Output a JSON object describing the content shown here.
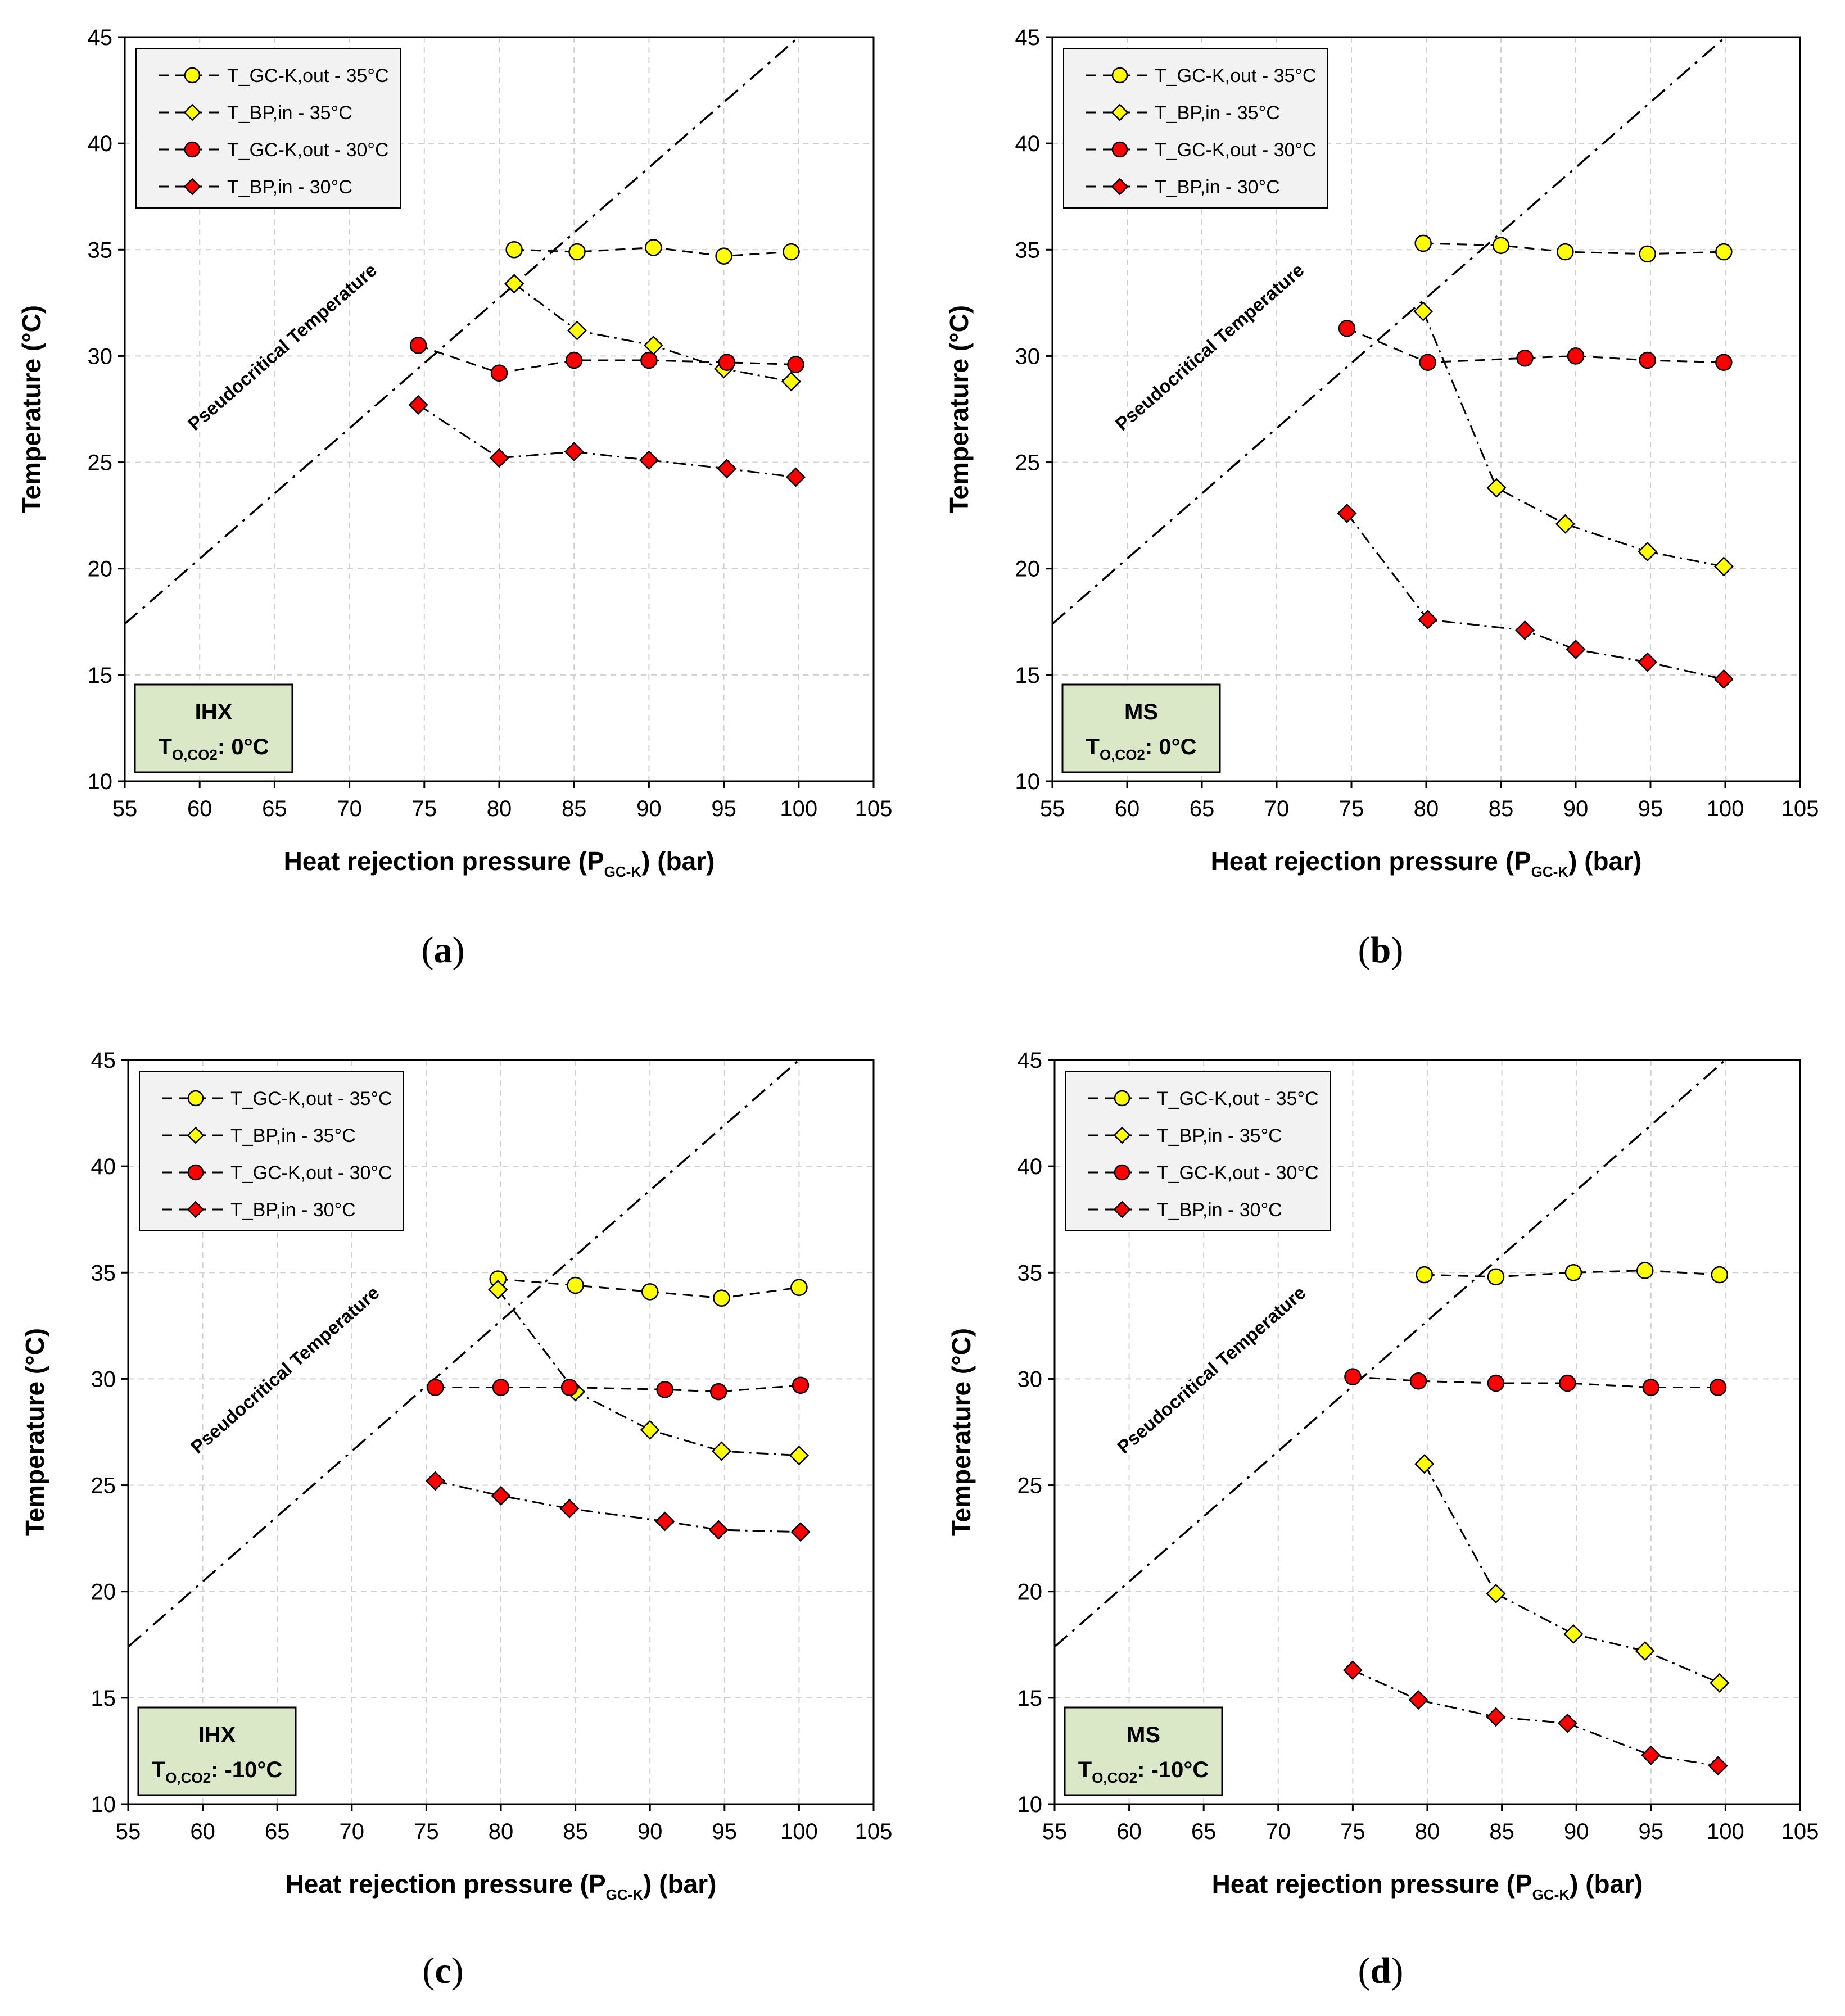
{
  "chart_data": [
    {
      "type": "line",
      "panel_label": "a",
      "xlabel_main": "Heat rejection pressure (P",
      "xlabel_sub": "GC-K",
      "xlabel_end": ") (bar)",
      "ylabel": "Temperature (°C)",
      "xlim": [
        55,
        105
      ],
      "ylim": [
        10,
        45
      ],
      "xticks": [
        "55",
        "60",
        "65",
        "70",
        "75",
        "80",
        "85",
        "90",
        "95",
        "100",
        "105"
      ],
      "yticks": [
        "10",
        "15",
        "20",
        "25",
        "30",
        "35",
        "40",
        "45"
      ],
      "grid": true,
      "legend_position": "top-left",
      "pseudocritical_label": "Pseudocritical Temperature",
      "pseudocritical_line": {
        "x": [
          55,
          100
        ],
        "y": [
          17.4,
          45
        ]
      },
      "box": {
        "line1": "IHX",
        "t_main": "T",
        "t_sub": "O,CO2",
        "t_value": ": 0°C"
      },
      "series": [
        {
          "name": "T_GC-K,out - 35°C",
          "marker": "circle",
          "color": "#FFFF00",
          "dash": "dash",
          "x": [
            81,
            85.2,
            90.3,
            95,
            99.5
          ],
          "y": [
            35.0,
            34.9,
            35.1,
            34.7,
            34.9
          ]
        },
        {
          "name": "T_BP,in - 35°C",
          "marker": "diamond",
          "color": "#FFFF00",
          "dash": "dashdot",
          "x": [
            81,
            85.2,
            90.3,
            95,
            99.5
          ],
          "y": [
            33.4,
            31.2,
            30.5,
            29.4,
            28.8
          ]
        },
        {
          "name": "T_GC-K,out - 30°C",
          "marker": "circle",
          "color": "#FF0000",
          "dash": "dash",
          "x": [
            74.6,
            80,
            85,
            90,
            95.2,
            99.8
          ],
          "y": [
            30.5,
            29.2,
            29.8,
            29.8,
            29.7,
            29.6
          ]
        },
        {
          "name": "T_BP,in - 30°C",
          "marker": "diamond",
          "color": "#FF0000",
          "dash": "dashdot",
          "x": [
            74.6,
            80,
            85,
            90,
            95.2,
            99.8
          ],
          "y": [
            27.7,
            25.2,
            25.5,
            25.1,
            24.7,
            24.3
          ]
        }
      ]
    },
    {
      "type": "line",
      "panel_label": "b",
      "xlabel_main": "Heat rejection pressure (P",
      "xlabel_sub": "GC-K",
      "xlabel_end": ") (bar)",
      "ylabel": "Temperature (°C)",
      "xlim": [
        55,
        105
      ],
      "ylim": [
        10,
        45
      ],
      "xticks": [
        "55",
        "60",
        "65",
        "70",
        "75",
        "80",
        "85",
        "90",
        "95",
        "100",
        "105"
      ],
      "yticks": [
        "10",
        "15",
        "20",
        "25",
        "30",
        "35",
        "40",
        "45"
      ],
      "grid": true,
      "legend_position": "top-left",
      "pseudocritical_label": "Pseudocritical Temperature",
      "pseudocritical_line": {
        "x": [
          55,
          100
        ],
        "y": [
          17.4,
          45
        ]
      },
      "box": {
        "line1": "MS",
        "t_main": "T",
        "t_sub": "O,CO2",
        "t_value": ": 0°C"
      },
      "series": [
        {
          "name": "T_GC-K,out - 35°C",
          "marker": "circle",
          "color": "#FFFF00",
          "dash": "dash",
          "x": [
            79.8,
            85,
            89.3,
            94.8,
            99.9
          ],
          "y": [
            35.3,
            35.2,
            34.9,
            34.8,
            34.9
          ]
        },
        {
          "name": "T_BP,in - 35°C",
          "marker": "diamond",
          "color": "#FFFF00",
          "dash": "dashdot",
          "x": [
            79.8,
            84.7,
            89.3,
            94.8,
            99.9
          ],
          "y": [
            32.1,
            23.8,
            22.1,
            20.8,
            20.1
          ]
        },
        {
          "name": "T_GC-K,out - 30°C",
          "marker": "circle",
          "color": "#FF0000",
          "dash": "dash",
          "x": [
            74.7,
            80.1,
            86.6,
            90,
            94.8,
            99.9
          ],
          "y": [
            31.3,
            29.7,
            29.9,
            30.0,
            29.8,
            29.7
          ]
        },
        {
          "name": "T_BP,in - 30°C",
          "marker": "diamond",
          "color": "#FF0000",
          "dash": "dashdot",
          "x": [
            74.7,
            80.1,
            86.6,
            90,
            94.8,
            99.9
          ],
          "y": [
            22.6,
            17.6,
            17.1,
            16.2,
            15.6,
            14.8
          ]
        }
      ]
    },
    {
      "type": "line",
      "panel_label": "c",
      "xlabel_main": "Heat rejection pressure (P",
      "xlabel_sub": "GC-K",
      "xlabel_end": ") (bar)",
      "ylabel": "Temperature (°C)",
      "xlim": [
        55,
        105
      ],
      "ylim": [
        10,
        45
      ],
      "xticks": [
        "55",
        "60",
        "65",
        "70",
        "75",
        "80",
        "85",
        "90",
        "95",
        "100",
        "105"
      ],
      "yticks": [
        "10",
        "15",
        "20",
        "25",
        "30",
        "35",
        "40",
        "45"
      ],
      "grid": true,
      "legend_position": "top-left",
      "pseudocritical_label": "Pseudocritical Temperature",
      "pseudocritical_line": {
        "x": [
          55,
          100
        ],
        "y": [
          17.4,
          45
        ]
      },
      "box": {
        "line1": "IHX",
        "t_main": "T",
        "t_sub": "O,CO2",
        "t_value": ": -10°C"
      },
      "series": [
        {
          "name": "T_GC-K,out - 35°C",
          "marker": "circle",
          "color": "#FFFF00",
          "dash": "dash",
          "x": [
            79.8,
            85,
            90,
            94.8,
            100
          ],
          "y": [
            34.7,
            34.4,
            34.1,
            33.8,
            34.3
          ]
        },
        {
          "name": "T_BP,in - 35°C",
          "marker": "diamond",
          "color": "#FFFF00",
          "dash": "dashdot",
          "x": [
            79.8,
            85,
            90,
            94.8,
            100
          ],
          "y": [
            34.2,
            29.4,
            27.6,
            26.6,
            26.4
          ]
        },
        {
          "name": "T_GC-K,out - 30°C",
          "marker": "circle",
          "color": "#FF0000",
          "dash": "dash",
          "x": [
            75.6,
            80,
            84.6,
            91,
            94.6,
            100.1
          ],
          "y": [
            29.6,
            29.6,
            29.6,
            29.5,
            29.4,
            29.7
          ]
        },
        {
          "name": "T_BP,in - 30°C",
          "marker": "diamond",
          "color": "#FF0000",
          "dash": "dashdot",
          "x": [
            75.6,
            80,
            84.6,
            91,
            94.6,
            100.1
          ],
          "y": [
            25.2,
            24.5,
            23.9,
            23.3,
            22.9,
            22.8
          ]
        }
      ]
    },
    {
      "type": "line",
      "panel_label": "d",
      "xlabel_main": "Heat rejection pressure (P",
      "xlabel_sub": "GC-K",
      "xlabel_end": ") (bar)",
      "ylabel": "Temperature (°C)",
      "xlim": [
        55,
        105
      ],
      "ylim": [
        10,
        45
      ],
      "xticks": [
        "55",
        "60",
        "65",
        "70",
        "75",
        "80",
        "85",
        "90",
        "95",
        "100",
        "105"
      ],
      "yticks": [
        "10",
        "15",
        "20",
        "25",
        "30",
        "35",
        "40",
        "45"
      ],
      "grid": true,
      "legend_position": "top-left",
      "pseudocritical_label": "Pseudocritical Temperature",
      "pseudocritical_line": {
        "x": [
          55,
          100
        ],
        "y": [
          17.4,
          45
        ]
      },
      "box": {
        "line1": "MS",
        "t_main": "T",
        "t_sub": "O,CO2",
        "t_value": ": -10°C"
      },
      "series": [
        {
          "name": "T_GC-K,out - 35°C",
          "marker": "circle",
          "color": "#FFFF00",
          "dash": "dash",
          "x": [
            79.8,
            84.6,
            89.8,
            94.6,
            99.6
          ],
          "y": [
            34.9,
            34.8,
            35.0,
            35.1,
            34.9
          ]
        },
        {
          "name": "T_BP,in - 35°C",
          "marker": "diamond",
          "color": "#FFFF00",
          "dash": "dashdot",
          "x": [
            79.8,
            84.6,
            89.8,
            94.6,
            99.6
          ],
          "y": [
            26.0,
            19.9,
            18.0,
            17.2,
            15.7
          ]
        },
        {
          "name": "T_GC-K,out - 30°C",
          "marker": "circle",
          "color": "#FF0000",
          "dash": "dash",
          "x": [
            75,
            79.4,
            84.6,
            89.4,
            95,
            99.5
          ],
          "y": [
            30.1,
            29.9,
            29.8,
            29.8,
            29.6,
            29.6
          ]
        },
        {
          "name": "T_BP,in - 30°C",
          "marker": "diamond",
          "color": "#FF0000",
          "dash": "dashdot",
          "x": [
            75,
            79.4,
            84.6,
            89.4,
            95,
            99.5
          ],
          "y": [
            16.3,
            14.9,
            14.1,
            13.8,
            12.3,
            11.8
          ]
        }
      ]
    }
  ]
}
